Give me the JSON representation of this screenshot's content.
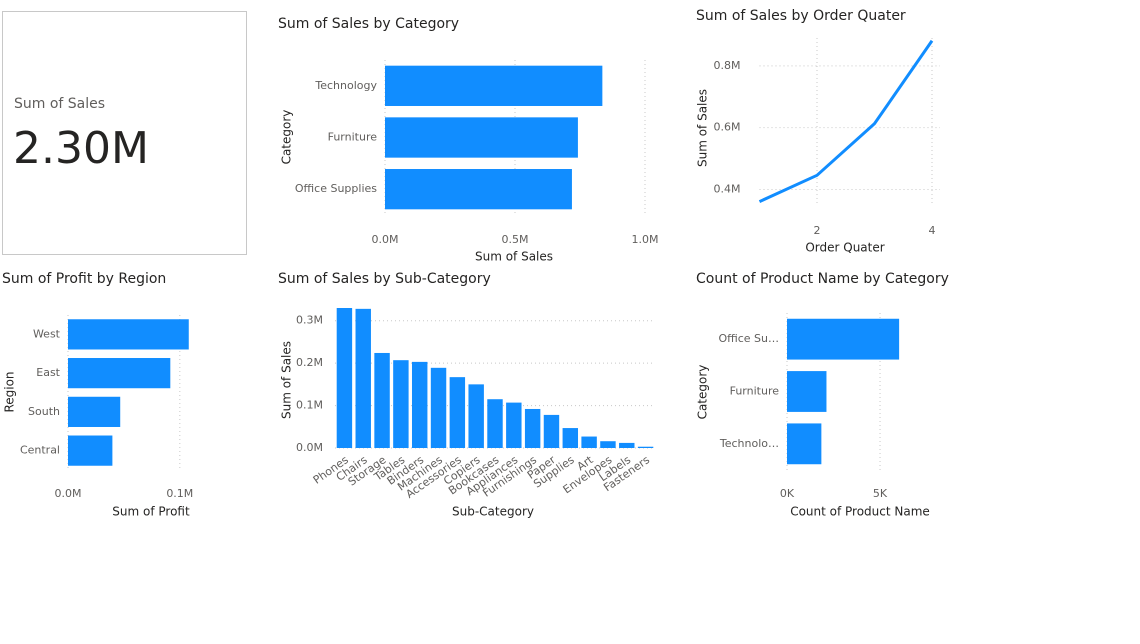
{
  "card": {
    "label": "Sum of Sales",
    "value": "2.30M"
  },
  "chart_data": [
    {
      "type": "hbar",
      "title": "Sum of Sales by Category",
      "x_label": "Sum of Sales",
      "y_label": "Category",
      "categories": [
        "Technology",
        "Furniture",
        "Office Supplies"
      ],
      "values": [
        0.836,
        0.742,
        0.719
      ],
      "color": "#118DFF",
      "xlim": [
        0,
        1.0
      ],
      "xticks": [
        {
          "value": 0,
          "label": "0.0M"
        },
        {
          "value": 0.5,
          "label": "0.5M"
        },
        {
          "value": 1.0,
          "label": "1.0M"
        }
      ],
      "grid": true
    },
    {
      "type": "line",
      "title": "Sum of Sales by Order Quater",
      "x_label": "Order Quater",
      "y_label": "Sum of Sales",
      "x": [
        1,
        2,
        3,
        4
      ],
      "values": [
        0.361,
        0.446,
        0.613,
        0.881
      ],
      "color": "#118DFF",
      "xlim": [
        1,
        4
      ],
      "xticks": [
        2,
        4
      ],
      "ylim": [
        0.35,
        0.89
      ],
      "yticks": [
        {
          "value": 0.4,
          "label": "0.4M"
        },
        {
          "value": 0.6,
          "label": "0.6M"
        },
        {
          "value": 0.8,
          "label": "0.8M"
        }
      ],
      "grid": true
    },
    {
      "type": "hbar",
      "title": "Sum of Profit by Region",
      "x_label": "Sum of Profit",
      "y_label": "Region",
      "categories": [
        "West",
        "East",
        "South",
        "Central"
      ],
      "values": [
        0.108,
        0.0915,
        0.0467,
        0.0397
      ],
      "color": "#118DFF",
      "xlim": [
        0,
        0.11
      ],
      "xticks": [
        {
          "value": 0,
          "label": "0.0M"
        },
        {
          "value": 0.1,
          "label": "0.1M"
        }
      ],
      "grid": true
    },
    {
      "type": "vbar",
      "title": "Sum of Sales by Sub-Category",
      "x_label": "Sub-Category",
      "y_label": "Sum of Sales",
      "categories": [
        "Phones",
        "Chairs",
        "Storage",
        "Tables",
        "Binders",
        "Machines",
        "Accessories",
        "Copiers",
        "Bookcases",
        "Appliances",
        "Furnishings",
        "Paper",
        "Supplies",
        "Art",
        "Envelopes",
        "Labels",
        "Fasteners"
      ],
      "values": [
        0.33,
        0.328,
        0.224,
        0.207,
        0.203,
        0.189,
        0.167,
        0.15,
        0.115,
        0.107,
        0.092,
        0.078,
        0.047,
        0.027,
        0.016,
        0.012,
        0.003
      ],
      "color": "#118DFF",
      "ylim": [
        0,
        0.33
      ],
      "yticks": [
        {
          "value": 0,
          "label": "0.0M"
        },
        {
          "value": 0.1,
          "label": "0.1M"
        },
        {
          "value": 0.2,
          "label": "0.2M"
        },
        {
          "value": 0.3,
          "label": "0.3M"
        }
      ],
      "grid": true
    },
    {
      "type": "hbar",
      "title": "Count of Product Name by Category",
      "x_label": "Count of Product Name",
      "y_label": "Category",
      "categories": [
        "Office Su…",
        "Furniture",
        "Technolo…"
      ],
      "values": [
        6.026,
        2.121,
        1.847
      ],
      "color": "#118DFF",
      "xlim": [
        0,
        6.1
      ],
      "xticks": [
        {
          "value": 0,
          "label": "0K"
        },
        {
          "value": 5,
          "label": "5K"
        }
      ],
      "grid": true
    }
  ]
}
